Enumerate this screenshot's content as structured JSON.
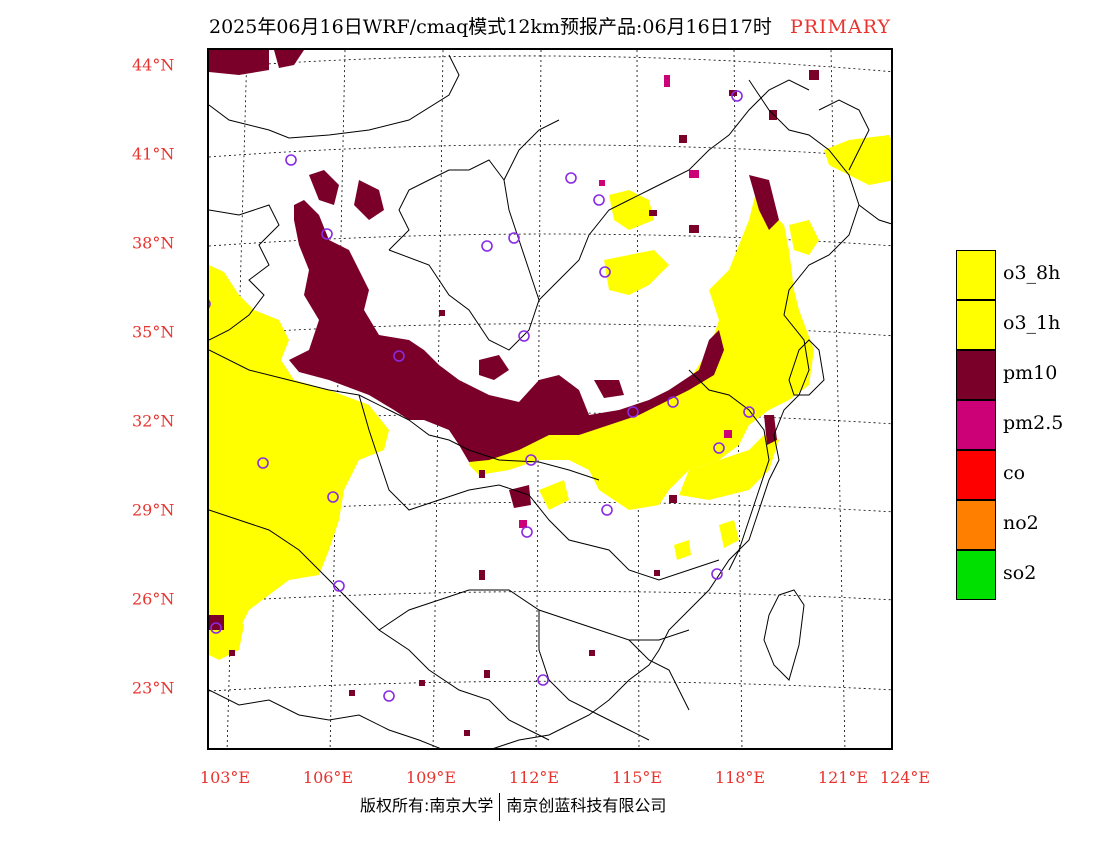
{
  "header": {
    "title": "2025年06月16日WRF/cmaq模式12km预报产品:06月16日17时",
    "tag": "PRIMARY"
  },
  "axes": {
    "lat_labels": [
      "44°N",
      "41°N",
      "38°N",
      "35°N",
      "32°N",
      "29°N",
      "26°N",
      "23°N"
    ],
    "lon_labels": [
      "103°E",
      "106°E",
      "109°E",
      "112°E",
      "115°E",
      "118°E",
      "121°E",
      "124°E"
    ]
  },
  "legend": {
    "items": [
      {
        "label": "o3_8h",
        "color": "#ffff00"
      },
      {
        "label": "o3_1h",
        "color": "#ffff00"
      },
      {
        "label": "pm10",
        "color": "#7a0029"
      },
      {
        "label": "pm2.5",
        "color": "#cc0077"
      },
      {
        "label": "co",
        "color": "#ff0000"
      },
      {
        "label": "no2",
        "color": "#ff7f00"
      },
      {
        "label": "so2",
        "color": "#00e000"
      }
    ]
  },
  "footer": {
    "left": "版权所有:南京大学",
    "right": "南京创蓝科技有限公司"
  },
  "colors": {
    "o3": "#ffff00",
    "pm10": "#7a0029",
    "pm25": "#cc0077",
    "station_marker": "#8a2be2",
    "axis_label": "#e8332f"
  }
}
